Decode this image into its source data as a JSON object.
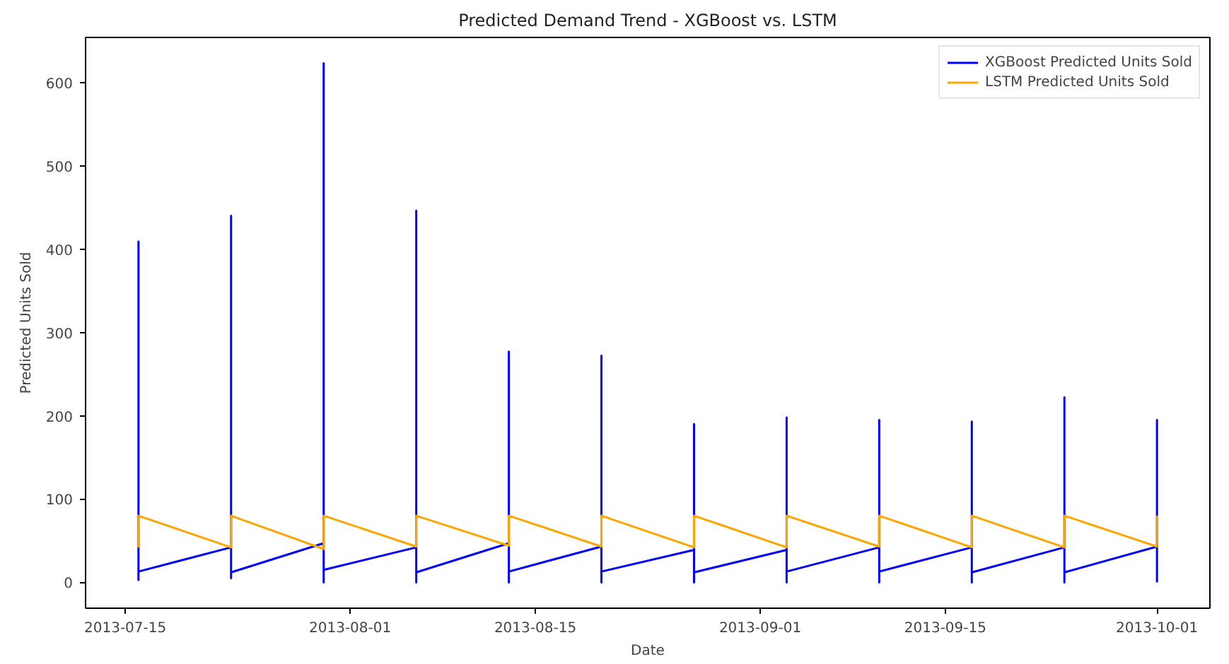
{
  "chart_data": {
    "type": "line",
    "title": "Predicted Demand Trend - XGBoost vs. LSTM",
    "xlabel": "Date",
    "ylabel": "Predicted Units Sold",
    "xlim": [
      "2013-07-12",
      "2013-10-05"
    ],
    "xticks": [
      "2013-07-15",
      "2013-08-01",
      "2013-08-15",
      "2013-09-01",
      "2013-09-15",
      "2013-10-01"
    ],
    "ylim": [
      -31,
      654
    ],
    "yticks": [
      0,
      100,
      200,
      300,
      400,
      500,
      600
    ],
    "legend": "top right",
    "line_style": "solid",
    "series": [
      {
        "name": "XGBoost Predicted Units Sold",
        "color": "#0000ff",
        "x": [
          "2013-07-16",
          "2013-07-16",
          "2013-07-16",
          "2013-07-23",
          "2013-07-23",
          "2013-07-23",
          "2013-07-23",
          "2013-07-30",
          "2013-07-30",
          "2013-07-30",
          "2013-07-30",
          "2013-08-06",
          "2013-08-06",
          "2013-08-06",
          "2013-08-06",
          "2013-08-13",
          "2013-08-13",
          "2013-08-13",
          "2013-08-13",
          "2013-08-20",
          "2013-08-20",
          "2013-08-20",
          "2013-08-20",
          "2013-08-27",
          "2013-08-27",
          "2013-08-27",
          "2013-08-27",
          "2013-09-03",
          "2013-09-03",
          "2013-09-03",
          "2013-09-03",
          "2013-09-10",
          "2013-09-10",
          "2013-09-10",
          "2013-09-10",
          "2013-09-17",
          "2013-09-17",
          "2013-09-17",
          "2013-09-17",
          "2013-09-24",
          "2013-09-24",
          "2013-09-24",
          "2013-09-24",
          "2013-10-01",
          "2013-10-01",
          "2013-10-01"
        ],
        "values": [
          410,
          3,
          13,
          42,
          440,
          5,
          12,
          47,
          623,
          0,
          15,
          42,
          446,
          0,
          12,
          47,
          277,
          0,
          13,
          43,
          272,
          0,
          13,
          39,
          190,
          0,
          12,
          39,
          198,
          0,
          13,
          42,
          195,
          0,
          13,
          42,
          193,
          0,
          12,
          42,
          222,
          0,
          12,
          43,
          195,
          0
        ]
      },
      {
        "name": "LSTM Predicted Units Sold",
        "color": "#ffa500",
        "x": [
          "2013-07-16",
          "2013-07-16",
          "2013-07-23",
          "2013-07-23",
          "2013-07-30",
          "2013-07-30",
          "2013-08-06",
          "2013-08-06",
          "2013-08-13",
          "2013-08-13",
          "2013-08-20",
          "2013-08-20",
          "2013-08-27",
          "2013-08-27",
          "2013-09-03",
          "2013-09-03",
          "2013-09-10",
          "2013-09-10",
          "2013-09-17",
          "2013-09-17",
          "2013-09-24",
          "2013-09-24",
          "2013-10-01",
          "2013-10-01"
        ],
        "values": [
          42,
          80,
          42,
          80,
          40,
          80,
          43,
          80,
          44,
          80,
          43,
          80,
          42,
          80,
          42,
          80,
          43,
          80,
          42,
          80,
          42,
          80,
          43,
          80
        ]
      }
    ]
  }
}
